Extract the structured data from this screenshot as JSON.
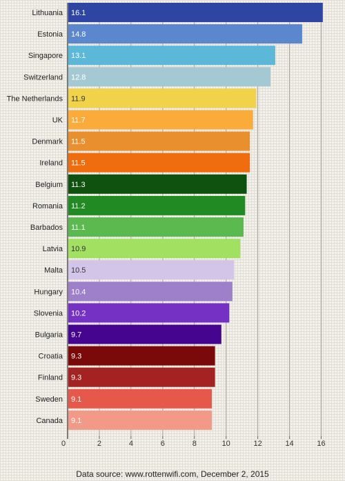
{
  "chart_data": {
    "type": "bar",
    "orientation": "horizontal",
    "categories": [
      "Lithuania",
      "Estonia",
      "Singapore",
      "Switzerland",
      "The Netherlands",
      "UK",
      "Denmark",
      "Ireland",
      "Belgium",
      "Romania",
      "Barbados",
      "Latvia",
      "Malta",
      "Hungary",
      "Slovenia",
      "Bulgaria",
      "Croatia",
      "Finland",
      "Sweden",
      "Canada"
    ],
    "values": [
      16.1,
      14.8,
      13.1,
      12.8,
      11.9,
      11.7,
      11.5,
      11.5,
      11.3,
      11.2,
      11.1,
      10.9,
      10.5,
      10.4,
      10.2,
      9.7,
      9.3,
      9.3,
      9.1,
      9.1
    ],
    "value_labels": [
      "16.1",
      "14.8",
      "13.1",
      "12.8",
      "11.9",
      "11.7",
      "11.5",
      "11.5",
      "11.3",
      "11.2",
      "11.1",
      "10.9",
      "10.5",
      "10.4",
      "10.2",
      "9.7",
      "9.3",
      "9.3",
      "9.1",
      "9.1"
    ],
    "colors": [
      "#2e45a3",
      "#5b87cf",
      "#5bb8d8",
      "#a5c9d3",
      "#f0d348",
      "#fbab3a",
      "#ea8f2e",
      "#ef6c0f",
      "#0f520f",
      "#228a22",
      "#5ab94f",
      "#a1e060",
      "#d2c5e8",
      "#9d7fca",
      "#7530c4",
      "#45058f",
      "#7a0909",
      "#a52222",
      "#e6584a",
      "#f29a87"
    ],
    "value_label_colors": [
      "#ffffff",
      "#ffffff",
      "#ffffff",
      "#ffffff",
      "#333333",
      "#ffffff",
      "#ffffff",
      "#ffffff",
      "#ffffff",
      "#ffffff",
      "#ffffff",
      "#333333",
      "#333333",
      "#ffffff",
      "#ffffff",
      "#ffffff",
      "#ffffff",
      "#ffffff",
      "#ffffff",
      "#ffffff"
    ],
    "xlim": [
      0,
      16.5
    ],
    "xticks": [
      0,
      2,
      4,
      6,
      8,
      10,
      12,
      14,
      16
    ],
    "grid": true,
    "title": "",
    "xlabel": "",
    "ylabel": ""
  },
  "footer": {
    "source": "Data source: www.rottenwifi.com, December 2, 2015"
  }
}
